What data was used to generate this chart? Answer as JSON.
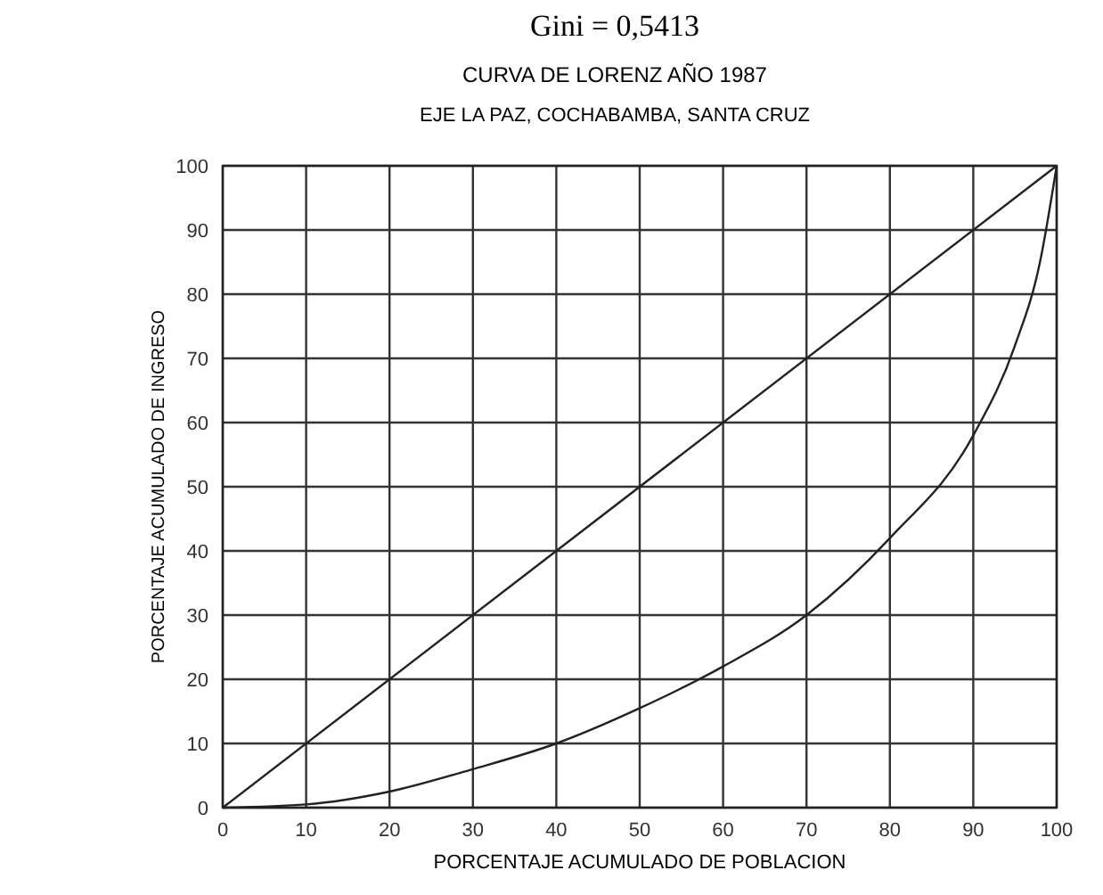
{
  "chart_data": {
    "type": "line",
    "title": "Gini = 0,5413",
    "subtitle": "CURVA DE LORENZ AÑO 1987\nEJE LA PAZ, COCHABAMBA, SANTA CRUZ",
    "xlabel": "PORCENTAJE ACUMULADO DE POBLACION",
    "ylabel": "PORCENTAJE ACUMULADO DE INGRESO",
    "xlim": [
      0,
      100
    ],
    "ylim": [
      0,
      100
    ],
    "xticks": [
      0,
      10,
      20,
      30,
      40,
      50,
      60,
      70,
      80,
      90,
      100
    ],
    "yticks": [
      0,
      10,
      20,
      30,
      40,
      50,
      60,
      70,
      80,
      90,
      100
    ],
    "grid": true,
    "marker": "none",
    "line_style": "solid",
    "series": [
      {
        "color": "#222222",
        "x": [
          0,
          100
        ],
        "values": [
          0,
          100
        ]
      },
      {
        "color": "#222222",
        "x": [
          0,
          10,
          20,
          30,
          40,
          50,
          60,
          70,
          80,
          90,
          95,
          98,
          100
        ],
        "values": [
          0,
          0.5,
          2.5,
          6,
          10,
          15.5,
          22,
          30,
          42,
          58,
          72,
          85,
          100
        ]
      }
    ]
  }
}
